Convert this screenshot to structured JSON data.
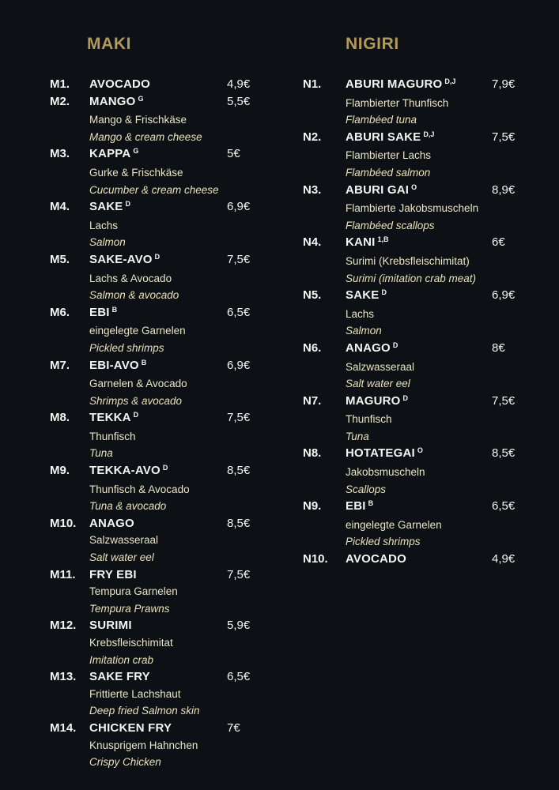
{
  "page": {
    "colors": {
      "background": "#0d1014",
      "accent_gold": "#b19a5c",
      "text_white": "#f4f4f2",
      "desc_german": "#e9e5c6",
      "desc_english": "#e8e1ba"
    }
  },
  "menu": {
    "sections": [
      {
        "title": "MAKI",
        "items": [
          {
            "no": "M1.",
            "name": "AVOCADO",
            "allergens": "",
            "price": "4,9€",
            "desc_de": "",
            "desc_en": ""
          },
          {
            "no": "M2.",
            "name": "MANGO",
            "allergens": "G",
            "price": "5,5€",
            "desc_de": "Mango & Frischkäse",
            "desc_en": "Mango & cream cheese"
          },
          {
            "no": "M3.",
            "name": "KAPPA",
            "allergens": "G",
            "price": "5€",
            "desc_de": "Gurke & Frischkäse",
            "desc_en": "Cucumber & cream cheese"
          },
          {
            "no": "M4.",
            "name": "SAKE",
            "allergens": "D",
            "price": "6,9€",
            "desc_de": "Lachs",
            "desc_en": "Salmon"
          },
          {
            "no": "M5.",
            "name": "SAKE-AVO",
            "allergens": "D",
            "price": "7,5€",
            "desc_de": "Lachs & Avocado",
            "desc_en": "Salmon & avocado"
          },
          {
            "no": "M6.",
            "name": "EBI",
            "allergens": "B",
            "price": "6,5€",
            "desc_de": "eingelegte Garnelen",
            "desc_en": "Pickled shrimps"
          },
          {
            "no": "M7.",
            "name": "EBI-AVO",
            "allergens": "B",
            "price": "6,9€",
            "desc_de": "Garnelen & Avocado",
            "desc_en": "Shrimps & avocado"
          },
          {
            "no": "M8.",
            "name": "TEKKA",
            "allergens": "D",
            "price": "7,5€",
            "desc_de": "Thunfisch",
            "desc_en": "Tuna"
          },
          {
            "no": "M9.",
            "name": "TEKKA-AVO",
            "allergens": "D",
            "price": "8,5€",
            "desc_de": "Thunfisch & Avocado",
            "desc_en": "Tuna & avocado"
          },
          {
            "no": "M10.",
            "name": "ANAGO",
            "allergens": "",
            "price": "8,5€",
            "desc_de": "Salzwasseraal",
            "desc_en": "Salt water eel"
          },
          {
            "no": "M11.",
            "name": "FRY EBI",
            "allergens": "",
            "price": "7,5€",
            "desc_de": "Tempura Garnelen",
            "desc_en": "Tempura Prawns"
          },
          {
            "no": "M12.",
            "name": "SURIMI",
            "allergens": "",
            "price": "5,9€",
            "desc_de": "Krebsfleischimitat",
            "desc_en": "Imitation crab"
          },
          {
            "no": "M13.",
            "name": "SAKE FRY",
            "allergens": "",
            "price": "6,5€",
            "desc_de": "Frittierte Lachshaut",
            "desc_en": "Deep fried Salmon skin"
          },
          {
            "no": "M14.",
            "name": "CHICKEN FRY",
            "allergens": "",
            "price": "7€",
            "desc_de": "Knusprigem Hahnchen",
            "desc_en": "Crispy Chicken"
          }
        ]
      },
      {
        "title": "NIGIRI",
        "items": [
          {
            "no": "N1.",
            "name": "ABURI MAGURO",
            "allergens": "D,J",
            "price": "7,9€",
            "desc_de": "Flambierter Thunfisch",
            "desc_en": "Flambéed tuna"
          },
          {
            "no": "N2.",
            "name": "ABURI SAKE",
            "allergens": "D,J",
            "price": "7,5€",
            "desc_de": "Flambierter Lachs",
            "desc_en": "Flambéed salmon"
          },
          {
            "no": "N3.",
            "name": "ABURI GAI",
            "allergens": "O",
            "price": "8,9€",
            "desc_de": "Flambierte Jakobsmuscheln",
            "desc_en": "Flambéed scallops"
          },
          {
            "no": "N4.",
            "name": "KANI",
            "allergens": "1,B",
            "price": "6€",
            "desc_de": "Surimi (Krebsfleischimitat)",
            "desc_en": "Surimi (imitation crab meat)"
          },
          {
            "no": "N5.",
            "name": "SAKE",
            "allergens": "D",
            "price": "6,9€",
            "desc_de": "Lachs",
            "desc_en": "Salmon"
          },
          {
            "no": "N6.",
            "name": "ANAGO",
            "allergens": "D",
            "price": "8€",
            "desc_de": "Salzwasseraal",
            "desc_en": "Salt water eel"
          },
          {
            "no": "N7.",
            "name": "MAGURO",
            "allergens": "D",
            "price": "7,5€",
            "desc_de": "Thunfisch",
            "desc_en": "Tuna"
          },
          {
            "no": "N8.",
            "name": "HOTATEGAI",
            "allergens": "O",
            "price": "8,5€",
            "desc_de": "Jakobsmuscheln",
            "desc_en": "Scallops"
          },
          {
            "no": "N9.",
            "name": "EBI",
            "allergens": "B",
            "price": "6,5€",
            "desc_de": "eingelegte Garnelen",
            "desc_en": "Pickled shrimps"
          },
          {
            "no": "N10.",
            "name": "AVOCADO",
            "allergens": "",
            "price": "4,9€",
            "desc_de": "",
            "desc_en": ""
          }
        ]
      }
    ]
  }
}
